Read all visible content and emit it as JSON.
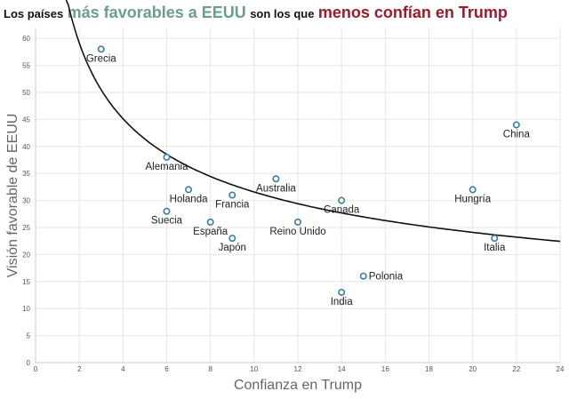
{
  "title": {
    "part1": "Los países",
    "part2": "más favorables a EEUU",
    "part3": "son los que",
    "part4": "menos confían en Trump",
    "color_highlight_green": "#6a9e8e",
    "color_highlight_red": "#a0192a"
  },
  "chart_data": {
    "type": "scatter",
    "xlabel": "Confianza en Trump",
    "ylabel": "Visión favorable de EEUU",
    "xlim": [
      0,
      24
    ],
    "ylim": [
      0,
      62
    ],
    "xticks": [
      0,
      2,
      4,
      6,
      8,
      10,
      12,
      14,
      16,
      18,
      20,
      22,
      24
    ],
    "yticks": [
      0,
      5,
      10,
      15,
      20,
      25,
      30,
      35,
      40,
      45,
      50,
      55,
      60
    ],
    "grid": true,
    "marker_color": "#3a7ca5",
    "trend": {
      "type": "power",
      "a": 77.5,
      "b": -0.39,
      "color": "#111111"
    },
    "points": [
      {
        "name": "Grecia",
        "x": 3,
        "y": 58,
        "label_pos": "below"
      },
      {
        "name": "Alemania",
        "x": 6,
        "y": 38,
        "label_pos": "below"
      },
      {
        "name": "Holanda",
        "x": 7,
        "y": 32,
        "label_pos": "below"
      },
      {
        "name": "Suecia",
        "x": 6,
        "y": 28,
        "label_pos": "below"
      },
      {
        "name": "España",
        "x": 8,
        "y": 26,
        "label_pos": "below"
      },
      {
        "name": "Francia",
        "x": 9,
        "y": 31,
        "label_pos": "below"
      },
      {
        "name": "Japón",
        "x": 9,
        "y": 23,
        "label_pos": "below"
      },
      {
        "name": "Australia",
        "x": 11,
        "y": 34,
        "label_pos": "below"
      },
      {
        "name": "Reino Unido",
        "x": 12,
        "y": 26,
        "label_pos": "below"
      },
      {
        "name": "Canada",
        "x": 14,
        "y": 30,
        "label_pos": "below"
      },
      {
        "name": "India",
        "x": 14,
        "y": 13,
        "label_pos": "below"
      },
      {
        "name": "Polonia",
        "x": 15,
        "y": 16,
        "label_pos": "right"
      },
      {
        "name": "Hungría",
        "x": 20,
        "y": 32,
        "label_pos": "below"
      },
      {
        "name": "Italia",
        "x": 21,
        "y": 23,
        "label_pos": "below"
      },
      {
        "name": "China",
        "x": 22,
        "y": 44,
        "label_pos": "below"
      }
    ]
  }
}
